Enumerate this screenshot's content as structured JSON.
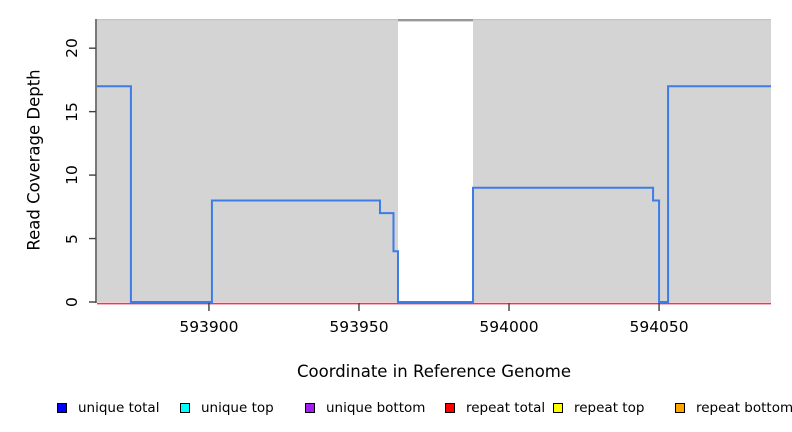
{
  "figure": {
    "x_axis_title": "Coordinate in Reference Genome",
    "y_axis_title": "Read Coverage Depth"
  },
  "chart_data": {
    "type": "line",
    "subtype": "step-coverage-plot",
    "title": "",
    "xlabel": "Coordinate in Reference Genome",
    "ylabel": "Read Coverage Depth",
    "xlim": [
      593862.7,
      594087.3
    ],
    "ylim": [
      0,
      22.3
    ],
    "x_ticks": [
      593900,
      593950,
      594000,
      594050
    ],
    "y_ticks": [
      0,
      5,
      10,
      15,
      20
    ],
    "grid": "off",
    "panel_bg": "#d4d4d4",
    "panel_top_edge_color": "#c3c3c3",
    "gap_region": {
      "x_start": 593963,
      "x_end": 593988,
      "fill": "#ffffff",
      "top_line_value": 22.3,
      "top_line_color": "#999999"
    },
    "series": [
      {
        "name": "unique total",
        "color": "#3d7ce8",
        "points": [
          [
            593862.7,
            17
          ],
          [
            593874,
            17
          ],
          [
            593874,
            0
          ],
          [
            593901,
            0
          ],
          [
            593901,
            8
          ],
          [
            593957,
            8
          ],
          [
            593957,
            7
          ],
          [
            593961.5,
            7
          ],
          [
            593961.5,
            4
          ],
          [
            593963,
            4
          ],
          [
            593963,
            0
          ],
          [
            593988,
            0
          ],
          [
            593988,
            9
          ],
          [
            594048,
            9
          ],
          [
            594048,
            8
          ],
          [
            594050,
            8
          ],
          [
            594050,
            0
          ],
          [
            594053,
            0
          ],
          [
            594053,
            17
          ],
          [
            594087.3,
            17
          ]
        ]
      },
      {
        "name": "repeat total",
        "color": "#e8394f",
        "points": [
          [
            593862.7,
            0
          ],
          [
            594087.3,
            0
          ]
        ]
      }
    ],
    "legend_position": "bottom"
  },
  "legend": {
    "items": [
      {
        "label": "unique total",
        "color": "#0000ff"
      },
      {
        "label": "unique top",
        "color": "#00ffff"
      },
      {
        "label": "unique bottom",
        "color": "#a020f0"
      },
      {
        "label": "repeat total",
        "color": "#ff0000"
      },
      {
        "label": "repeat top",
        "color": "#ffff00"
      },
      {
        "label": "repeat bottom",
        "color": "#ffa500"
      }
    ]
  }
}
